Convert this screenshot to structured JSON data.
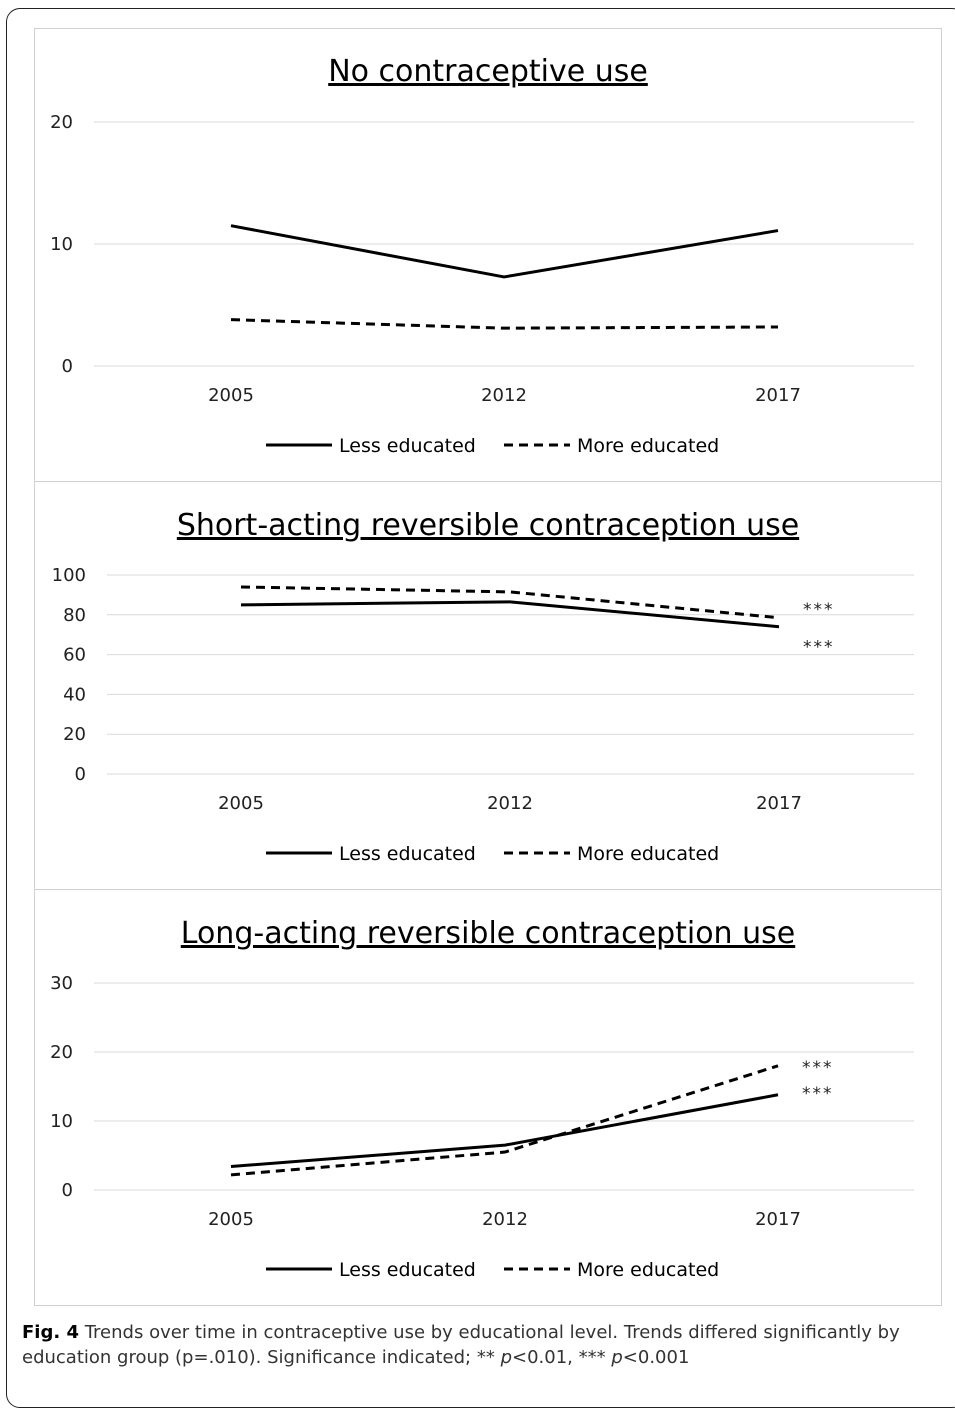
{
  "chart_data": [
    {
      "type": "line",
      "title": "No contraceptive use",
      "categories": [
        "2005",
        "2012",
        "2017"
      ],
      "ylim": [
        0,
        20
      ],
      "yticks": [
        0,
        10,
        20
      ],
      "grid": true,
      "legend": "bottom",
      "series": [
        {
          "name": "Less educated",
          "style": "solid",
          "values": [
            11.5,
            7.3,
            11.1
          ],
          "annotation": ""
        },
        {
          "name": "More educated",
          "style": "dashed",
          "values": [
            3.8,
            3.1,
            3.2
          ],
          "annotation": ""
        }
      ]
    },
    {
      "type": "line",
      "title": "Short-acting reversible contraception use",
      "categories": [
        "2005",
        "2012",
        "2017"
      ],
      "ylim": [
        0,
        100
      ],
      "yticks": [
        0,
        20,
        40,
        60,
        80,
        100
      ],
      "grid": true,
      "legend": "bottom",
      "series": [
        {
          "name": "Less educated",
          "style": "solid",
          "values": [
            85,
            86.5,
            74
          ],
          "annotation": "***"
        },
        {
          "name": "More educated",
          "style": "dashed",
          "values": [
            94,
            91.5,
            78.5
          ],
          "annotation": "***"
        }
      ]
    },
    {
      "type": "line",
      "title": "Long-acting reversible contraception use",
      "categories": [
        "2005",
        "2012",
        "2017"
      ],
      "ylim": [
        0,
        30
      ],
      "yticks": [
        0,
        10,
        20,
        30
      ],
      "grid": true,
      "legend": "bottom",
      "series": [
        {
          "name": "Less educated",
          "style": "solid",
          "values": [
            3.4,
            6.5,
            13.8
          ],
          "annotation": "***"
        },
        {
          "name": "More educated",
          "style": "dashed",
          "values": [
            2.2,
            5.5,
            18
          ],
          "annotation": "***"
        }
      ]
    }
  ],
  "caption": {
    "fig_label": "Fig. 4",
    "text_main": " Trends over time in contraceptive use by educational level. Trends differed significantly by education group (p=.010). Significance indicated; ** ",
    "p_symbol_1": "p",
    "text_mid": "<0.01, *** ",
    "p_symbol_2": "p",
    "text_end": "<0.001"
  }
}
